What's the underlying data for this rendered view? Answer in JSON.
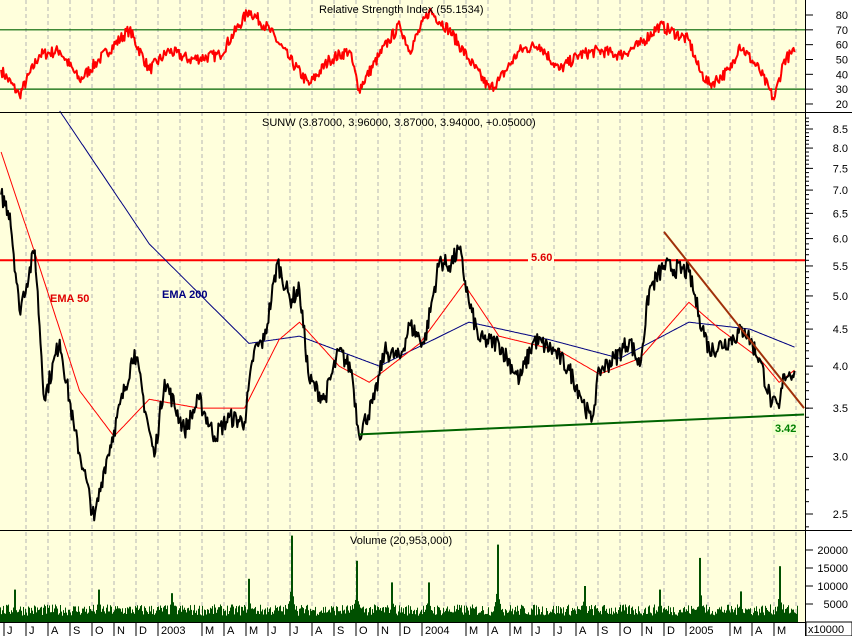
{
  "chart_data": [
    {
      "type": "line",
      "panel": "rsi",
      "title": "Relative Strength Index (55.1534)",
      "ylim": [
        15,
        85
      ],
      "yticks": [
        "80",
        "70",
        "60",
        "50",
        "40",
        "30",
        "20"
      ],
      "ytick_values": [
        80,
        70,
        60,
        50,
        40,
        30,
        20
      ],
      "reference_lines": [
        70,
        30
      ],
      "colors": {
        "line": "#ff0000",
        "reference": "#006400"
      },
      "series": {
        "x": [
          "2002-05-27",
          "2002-06-22",
          "2002-07-19",
          "2002-08-17",
          "2002-09-14",
          "2002-10-11",
          "2002-11-22",
          "2002-12-19",
          "2003-01-16",
          "2003-02-14",
          "2003-03-25",
          "2003-05-05",
          "2003-06-03",
          "2003-07-01",
          "2003-07-27",
          "2003-08-25",
          "2003-09-22",
          "2003-10-05",
          "2003-11-03",
          "2003-11-16",
          "2003-12-01",
          "2003-12-14",
          "2004-01-11",
          "2004-02-08",
          "2004-03-05",
          "2004-04-03",
          "2004-04-16",
          "2004-05-14",
          "2004-06-11",
          "2004-07-08",
          "2004-08-05",
          "2004-09-03",
          "2004-10-01",
          "2004-10-28",
          "2004-11-25",
          "2005-01-05",
          "2005-01-19",
          "2005-02-03",
          "2005-03-01",
          "2005-03-14",
          "2005-04-11",
          "2005-05-01",
          "2005-05-15",
          "2005-05-29"
        ],
        "y": [
          43,
          26,
          53,
          56,
          36,
          50,
          70,
          43,
          56,
          50,
          53,
          83,
          70,
          50,
          33,
          50,
          56,
          30,
          53,
          63,
          73,
          56,
          83,
          70,
          50,
          30,
          36,
          56,
          60,
          43,
          53,
          56,
          53,
          60,
          73,
          63,
          43,
          33,
          43,
          60,
          43,
          23,
          50,
          55
        ]
      }
    },
    {
      "type": "line",
      "panel": "price",
      "title": "SUNW (3.87000, 3.96000, 3.87000, 3.94000, +0.05000)",
      "scale": "log",
      "ylim": [
        2.35,
        9.0
      ],
      "yticks": [
        "8.5",
        "8.0",
        "7.5",
        "7.0",
        "6.5",
        "6.0",
        "5.5",
        "5.0",
        "4.5",
        "4.0",
        "3.5",
        "3.0",
        "2.5"
      ],
      "ytick_values": [
        8.5,
        8.0,
        7.5,
        7.0,
        6.5,
        6.0,
        5.5,
        5.0,
        4.5,
        4.0,
        3.5,
        3.0,
        2.5
      ],
      "colors": {
        "price": "#000000",
        "ema50": "#ff0000",
        "ema200": "#000080",
        "resistance": "#ff0000",
        "support": "#006400",
        "downtrend": "#a0300a"
      },
      "price": {
        "x": [
          "2002-05-27",
          "2002-06-09",
          "2002-06-22",
          "2002-07-13",
          "2002-07-26",
          "2002-08-17",
          "2002-09-07",
          "2002-09-20",
          "2002-10-04",
          "2002-10-18",
          "2002-11-01",
          "2002-11-29",
          "2002-12-19",
          "2002-12-26",
          "2003-01-10",
          "2003-02-07",
          "2003-02-27",
          "2003-03-18",
          "2003-04-08",
          "2003-04-29",
          "2003-05-12",
          "2003-05-26",
          "2003-06-14",
          "2003-07-01",
          "2003-07-14",
          "2003-07-27",
          "2003-08-18",
          "2003-09-08",
          "2003-09-25",
          "2003-10-05",
          "2003-10-26",
          "2003-11-10",
          "2003-12-01",
          "2003-12-14",
          "2004-01-04",
          "2004-01-25",
          "2004-02-08",
          "2004-02-22",
          "2004-03-05",
          "2004-03-19",
          "2004-04-16",
          "2004-05-14",
          "2004-06-04",
          "2004-07-01",
          "2004-07-22",
          "2004-08-05",
          "2004-08-22",
          "2004-09-03",
          "2004-09-24",
          "2004-10-14",
          "2004-10-28",
          "2004-11-11",
          "2004-12-01",
          "2005-01-05",
          "2005-01-19",
          "2005-02-03",
          "2005-03-01",
          "2005-03-21",
          "2005-04-11",
          "2005-04-28",
          "2005-05-08",
          "2005-05-15",
          "2005-05-29"
        ],
        "y": [
          6.9,
          6.5,
          4.78,
          5.78,
          3.6,
          4.35,
          3.26,
          2.87,
          2.45,
          2.9,
          3.26,
          4.21,
          3.26,
          3.0,
          3.83,
          3.26,
          3.6,
          3.2,
          3.4,
          3.35,
          4.2,
          4.35,
          5.57,
          4.94,
          5.1,
          3.83,
          3.6,
          4.2,
          3.95,
          3.22,
          3.6,
          4.2,
          4.1,
          4.56,
          4.3,
          5.6,
          5.5,
          5.8,
          4.9,
          4.35,
          4.3,
          3.83,
          4.35,
          4.2,
          3.95,
          3.7,
          3.35,
          3.95,
          4.1,
          4.35,
          4.0,
          5.1,
          5.5,
          5.4,
          4.7,
          4.2,
          4.35,
          4.5,
          4.1,
          3.55,
          3.5,
          3.9,
          3.94
        ]
      },
      "ema50": {
        "label": "EMA 50",
        "x": [
          "2002-05-27",
          "2002-07-19",
          "2002-09-14",
          "2002-11-01",
          "2002-12-19",
          "2003-02-27",
          "2003-04-29",
          "2003-06-16",
          "2003-07-14",
          "2003-09-08",
          "2003-10-19",
          "2003-12-28",
          "2004-02-28",
          "2004-04-16",
          "2004-07-08",
          "2004-09-03",
          "2004-10-28",
          "2005-01-05",
          "2005-02-17",
          "2005-04-11",
          "2005-05-08",
          "2005-05-29"
        ],
        "y": [
          7.9,
          5.5,
          3.7,
          3.2,
          3.6,
          3.5,
          3.5,
          4.35,
          4.6,
          4.0,
          3.8,
          4.3,
          5.2,
          4.4,
          4.2,
          3.9,
          4.1,
          4.9,
          4.5,
          4.1,
          3.8,
          3.95
        ]
      },
      "ema200": {
        "label": "EMA 200",
        "x": [
          "2002-08-17",
          "2002-12-19",
          "2003-05-05",
          "2003-07-14",
          "2003-11-03",
          "2004-03-05",
          "2004-06-25",
          "2004-10-01",
          "2005-01-05",
          "2005-03-28",
          "2005-05-29"
        ],
        "y": [
          9.0,
          5.9,
          4.3,
          4.4,
          4.0,
          4.6,
          4.35,
          4.1,
          4.6,
          4.5,
          4.25
        ]
      },
      "resistance": {
        "label": "5.60",
        "value": 5.6
      },
      "support": {
        "label": "3.42",
        "x": [
          "2003-10-05",
          "2005-06-12"
        ],
        "y": [
          3.22,
          3.43
        ]
      },
      "downtrend": {
        "x": [
          "2004-12-01",
          "2005-06-12"
        ],
        "y": [
          6.13,
          3.5
        ]
      }
    },
    {
      "type": "bar",
      "panel": "volume",
      "title": "Volume (20,953,000)",
      "unit_label": "x10000",
      "ylim": [
        0,
        25000
      ],
      "yticks": [
        "20000",
        "15000",
        "10000",
        "5000"
      ],
      "ytick_values": [
        20000,
        15000,
        10000,
        5000
      ],
      "colors": {
        "bar": "#005000"
      },
      "typical_value": 3500,
      "spikes": {
        "x": [
          "2002-06-15",
          "2002-10-10",
          "2003-01-20",
          "2003-05-05",
          "2003-07-03",
          "2003-10-02",
          "2003-11-20",
          "2004-01-10",
          "2004-04-14",
          "2004-08-12",
          "2004-11-25",
          "2005-01-20",
          "2005-03-15",
          "2005-05-08"
        ],
        "y": [
          9000,
          9000,
          8000,
          12000,
          24000,
          17000,
          11000,
          11000,
          21500,
          10000,
          9000,
          17800,
          8500,
          15500
        ]
      }
    }
  ],
  "xaxis": {
    "labels": [
      "J",
      "J",
      "A",
      "S",
      "O",
      "N",
      "D",
      "2003",
      "M",
      "A",
      "M",
      "J",
      "J",
      "A",
      "S",
      "O",
      "N",
      "D",
      "2004",
      "M",
      "A",
      "M",
      "J",
      "J",
      "A",
      "S",
      "O",
      "N",
      "D",
      "2005",
      "M",
      "A",
      "M"
    ],
    "dates": [
      "2002-06-01",
      "2002-07-01",
      "2002-08-01",
      "2002-09-01",
      "2002-10-01",
      "2002-11-01",
      "2002-12-01",
      "2003-01-01",
      "2003-03-01",
      "2003-04-01",
      "2003-05-01",
      "2003-06-01",
      "2003-07-01",
      "2003-08-01",
      "2003-09-01",
      "2003-10-01",
      "2003-11-01",
      "2003-12-01",
      "2004-01-01",
      "2004-03-01",
      "2004-04-01",
      "2004-05-01",
      "2004-06-01",
      "2004-07-01",
      "2004-08-01",
      "2004-09-01",
      "2004-10-01",
      "2004-11-01",
      "2004-12-01",
      "2005-01-01",
      "2005-03-01",
      "2005-04-01",
      "2005-05-01"
    ]
  },
  "colors": {
    "plot_background": "#ffffdc",
    "grid": "#b4b4b4"
  }
}
